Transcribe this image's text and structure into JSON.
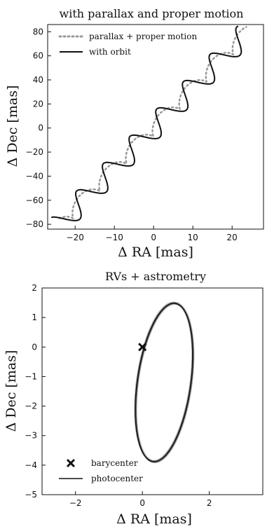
{
  "chart_data": [
    {
      "type": "line",
      "title": "with parallax and proper motion",
      "xlabel": "Δ RA [mas]",
      "ylabel": "Δ Dec [mas]",
      "xlim": [
        -27,
        28
      ],
      "ylim": [
        -84,
        86
      ],
      "xticks": [
        -20,
        -10,
        0,
        10,
        20
      ],
      "yticks": [
        -80,
        -60,
        -40,
        -20,
        0,
        20,
        40,
        60,
        80
      ],
      "grid": false,
      "legend": {
        "position": "top-left"
      },
      "series": [
        {
          "name": "parallax + proper motion",
          "style": "dotted",
          "color": "#999999"
        },
        {
          "name": "with orbit",
          "style": "solid",
          "color": "#111111"
        }
      ]
    },
    {
      "type": "scatter",
      "title": "RVs + astrometry",
      "xlabel": "Δ RA [mas]",
      "ylabel": "Δ Dec [mas]",
      "xlim": [
        -3.0,
        3.6
      ],
      "ylim": [
        -5,
        2
      ],
      "xticks": [
        -2,
        0,
        2
      ],
      "yticks": [
        -5,
        -4,
        -3,
        -2,
        -1,
        0,
        1,
        2
      ],
      "grid": false,
      "legend": {
        "position": "bottom-left"
      },
      "series": [
        {
          "name": "barycenter",
          "marker": "x",
          "points": [
            [
              0,
              0
            ]
          ],
          "color": "#111111"
        },
        {
          "name": "photocenter",
          "style": "solid",
          "color": "#111111",
          "ellipse": {
            "center": [
              0.65,
              -1.2
            ],
            "semi_axis_x": 0.8,
            "semi_axis_y": 2.7,
            "tilt": "slight"
          }
        }
      ]
    }
  ]
}
